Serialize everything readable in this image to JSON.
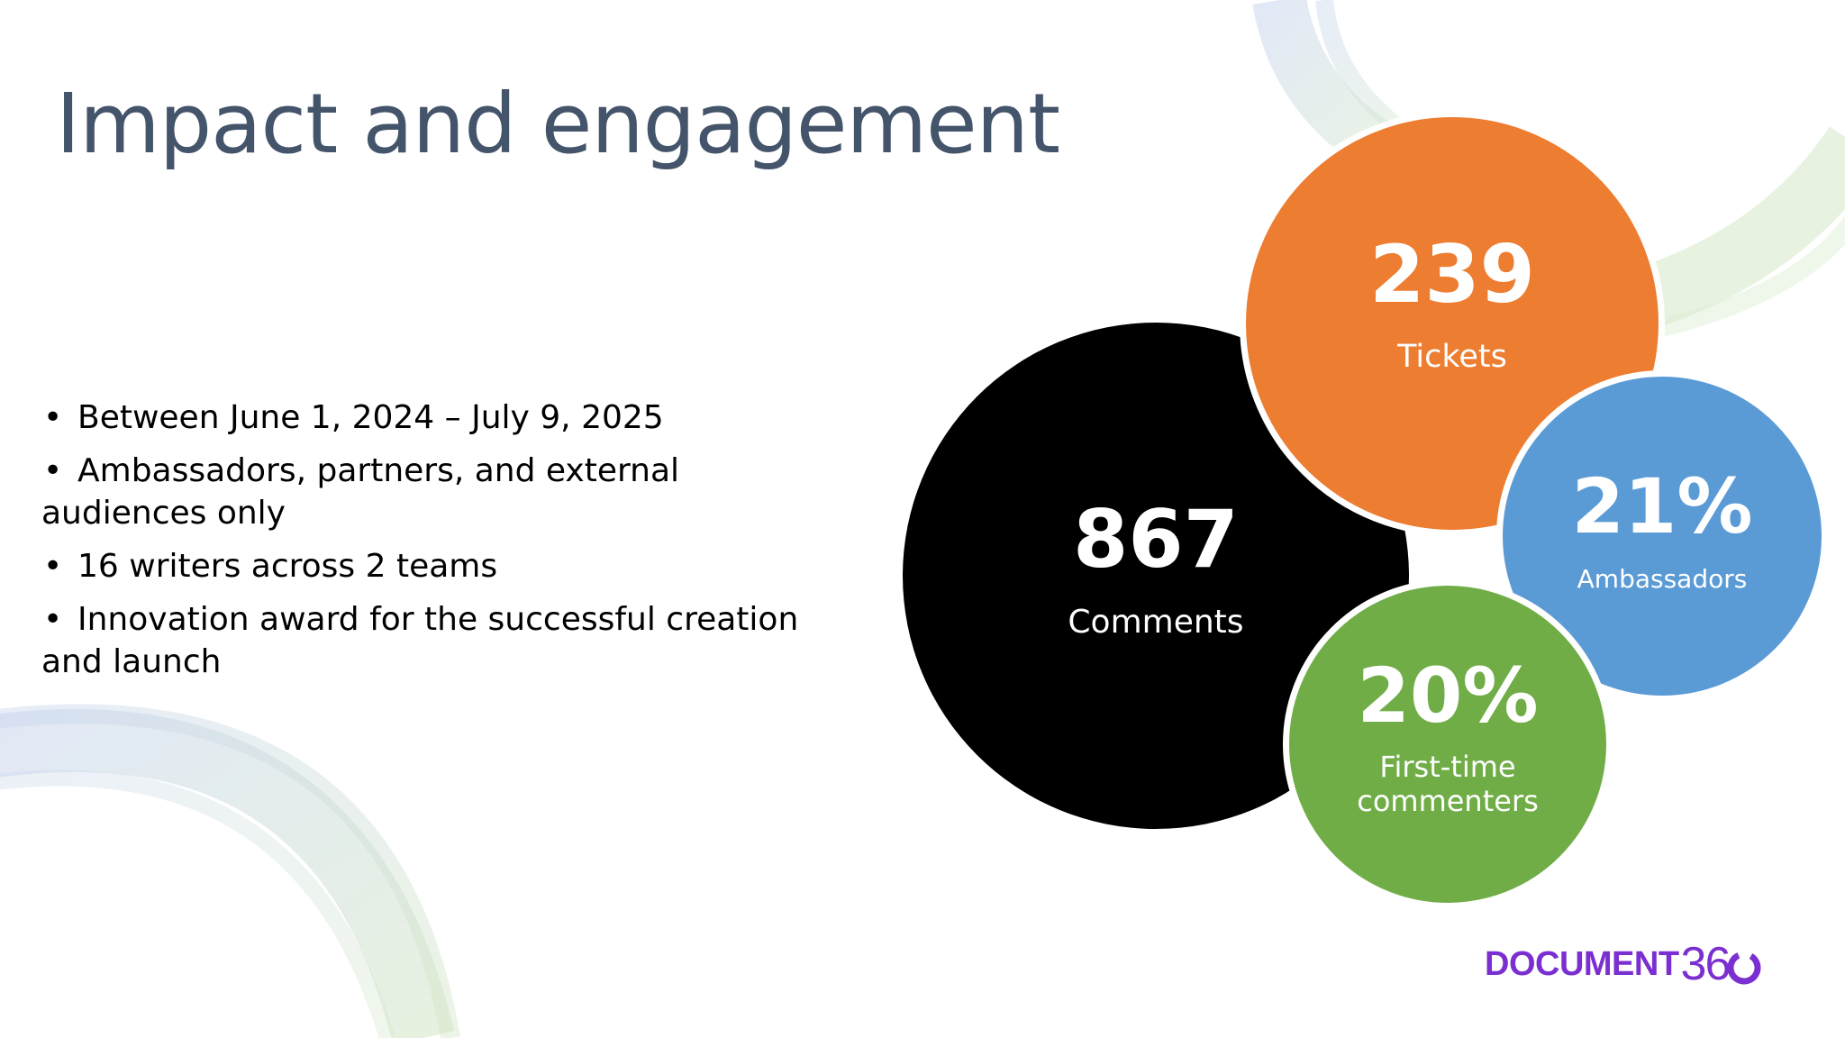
{
  "slide": {
    "title": "Impact and engagement",
    "colors": {
      "title": "#44546a",
      "comments": "#000000",
      "tickets": "#ed7d31",
      "ambassadors": "#5b9bd5",
      "first_time": "#70ad47",
      "logo": "#7b2fd0"
    },
    "bullets": [
      "Between June 1, 2024 – July 9, 2025",
      "Ambassadors, partners, and external audiences only",
      "16 writers across 2 teams",
      "Innovation award for the successful creation and launch"
    ],
    "stats": {
      "comments": {
        "value": "867",
        "label": "Comments"
      },
      "tickets": {
        "value": "239",
        "label": "Tickets"
      },
      "ambassadors": {
        "value": "21%",
        "label": "Ambassadors"
      },
      "first_time": {
        "value": "20%",
        "label": "First-time commenters"
      }
    },
    "logo": {
      "word": "DOCUMENT",
      "number": "36",
      "icon": "o-ring-icon"
    }
  }
}
